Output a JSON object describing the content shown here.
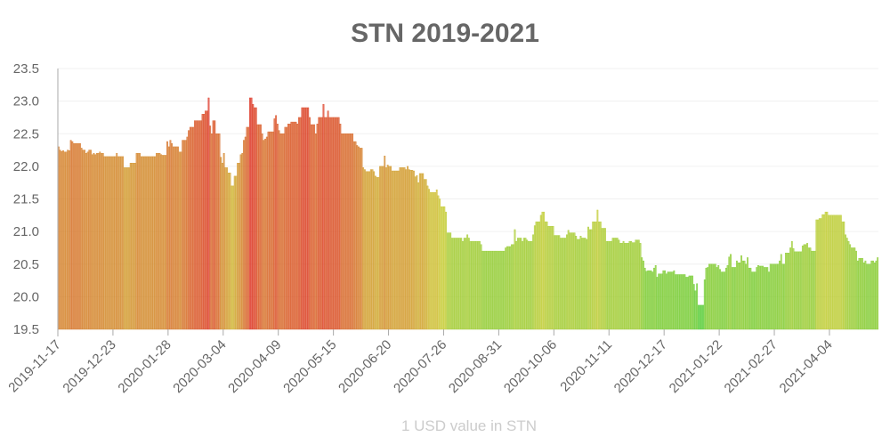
{
  "chart_data": {
    "type": "bar",
    "title": "STN 2019-2021",
    "xlabel": "1 USD value in STN",
    "ylabel": "",
    "ylim": [
      19.5,
      23.5
    ],
    "yticks": [
      "19.5",
      "20.0",
      "20.5",
      "21.0",
      "21.5",
      "22.0",
      "22.5",
      "23.0",
      "23.5"
    ],
    "x_start": "2019-11-17",
    "x_step_days": 1,
    "xtick_every_days": 36,
    "xticks": [
      "2019-11-17",
      "2019-12-23",
      "2020-01-28",
      "2020-03-04",
      "2020-04-09",
      "2020-05-15",
      "2020-06-20",
      "2020-07-26",
      "2020-08-31",
      "2020-10-06",
      "2020-11-11",
      "2020-12-17",
      "2021-01-22",
      "2021-02-27",
      "2021-04-04"
    ],
    "grid": true,
    "legend": "none",
    "color_scale": {
      "low": "#55cc33",
      "mid": "#cccc33",
      "high": "#dd3322"
    },
    "values": [
      22.3,
      22.25,
      22.23,
      22.24,
      22.22,
      22.22,
      22.25,
      22.24,
      22.4,
      22.38,
      22.35,
      22.35,
      22.35,
      22.35,
      22.35,
      22.28,
      22.25,
      22.25,
      22.2,
      22.22,
      22.25,
      22.25,
      22.18,
      22.2,
      22.18,
      22.2,
      22.2,
      22.22,
      22.2,
      22.2,
      22.15,
      22.15,
      22.15,
      22.15,
      22.15,
      22.15,
      22.15,
      22.15,
      22.2,
      22.15,
      22.15,
      22.15,
      22.15,
      21.98,
      21.98,
      21.98,
      21.98,
      22.05,
      22.05,
      22.05,
      22.05,
      22.2,
      22.2,
      22.2,
      22.15,
      22.15,
      22.15,
      22.15,
      22.15,
      22.15,
      22.15,
      22.15,
      22.15,
      22.15,
      22.2,
      22.2,
      22.2,
      22.18,
      22.17,
      22.17,
      22.17,
      22.38,
      22.3,
      22.4,
      22.35,
      22.3,
      22.3,
      22.3,
      22.3,
      22.22,
      22.22,
      22.4,
      22.4,
      22.4,
      22.45,
      22.55,
      22.6,
      22.6,
      22.6,
      22.7,
      22.7,
      22.7,
      22.7,
      22.7,
      22.8,
      22.8,
      22.85,
      22.85,
      23.05,
      22.62,
      22.5,
      22.7,
      22.7,
      22.5,
      22.5,
      22.5,
      22.14,
      22.05,
      22.2,
      21.98,
      21.98,
      21.9,
      21.9,
      21.7,
      21.7,
      21.85,
      21.85,
      22.05,
      22.05,
      22.18,
      22.2,
      22.4,
      22.45,
      22.6,
      22.6,
      23.05,
      23.05,
      22.95,
      22.9,
      22.9,
      22.64,
      22.64,
      22.64,
      22.5,
      22.4,
      22.42,
      22.45,
      22.53,
      22.53,
      22.53,
      22.53,
      22.73,
      22.78,
      22.65,
      22.55,
      22.5,
      22.5,
      22.5,
      22.6,
      22.6,
      22.65,
      22.65,
      22.68,
      22.68,
      22.68,
      22.68,
      22.65,
      22.75,
      22.75,
      22.9,
      22.9,
      22.9,
      22.9,
      22.9,
      22.75,
      22.64,
      22.64,
      22.64,
      22.5,
      22.65,
      22.75,
      22.75,
      22.75,
      22.95,
      22.75,
      22.75,
      22.85,
      22.75,
      22.75,
      22.75,
      22.75,
      22.75,
      22.75,
      22.75,
      22.65,
      22.5,
      22.5,
      22.5,
      22.5,
      22.5,
      22.5,
      22.5,
      22.5,
      22.38,
      22.38,
      22.32,
      22.3,
      22.28,
      22.28,
      21.98,
      21.95,
      21.92,
      21.92,
      21.92,
      21.95,
      21.95,
      21.92,
      21.85,
      21.83,
      21.83,
      22.0,
      22.0,
      22.0,
      22.16,
      21.98,
      22.02,
      22.0,
      22.0,
      21.93,
      21.93,
      21.93,
      21.93,
      21.93,
      21.98,
      21.98,
      21.98,
      21.98,
      21.95,
      22.0,
      21.95,
      21.94,
      21.94,
      21.93,
      21.84,
      21.86,
      21.75,
      21.89,
      21.89,
      21.89,
      21.8,
      21.8,
      21.7,
      21.65,
      21.6,
      21.6,
      21.6,
      21.6,
      21.64,
      21.55,
      21.5,
      21.38,
      21.38,
      21.38,
      21.3,
      20.98,
      20.98,
      20.98,
      20.9,
      20.9,
      20.9,
      20.9,
      20.9,
      20.9,
      20.9,
      20.85,
      20.9,
      20.9,
      20.95,
      20.9,
      20.85,
      20.85,
      20.85,
      20.85,
      20.85,
      20.85,
      20.85,
      20.8,
      20.7,
      20.7,
      20.7,
      20.7,
      20.7,
      20.7,
      20.7,
      20.7,
      20.7,
      20.7,
      20.7,
      20.7,
      20.7,
      20.7,
      20.7,
      20.75,
      20.77,
      20.77,
      20.77,
      20.8,
      20.8,
      21.03,
      20.85,
      20.9,
      20.9,
      20.9,
      20.85,
      20.9,
      20.9,
      20.87,
      20.85,
      20.85,
      20.85,
      20.95,
      21.09,
      21.15,
      21.15,
      21.15,
      21.25,
      21.3,
      21.3,
      21.15,
      21.15,
      21.08,
      21.08,
      21.08,
      21.08,
      20.94,
      20.94,
      20.94,
      20.94,
      20.9,
      20.9,
      20.9,
      20.9,
      20.95,
      21.02,
      20.98,
      20.98,
      20.98,
      20.98,
      20.93,
      20.88,
      20.88,
      20.93,
      20.9,
      20.9,
      20.9,
      20.88,
      21.07,
      21.03,
      21.03,
      21.15,
      21.15,
      21.15,
      21.33,
      21.15,
      21.15,
      21.05,
      21.05,
      21.05,
      20.85,
      20.85,
      20.85,
      20.85,
      20.9,
      20.9,
      20.9,
      20.9,
      20.87,
      20.82,
      20.82,
      20.85,
      20.82,
      20.82,
      20.82,
      20.85,
      20.85,
      20.83,
      20.83,
      20.87,
      20.87,
      20.87,
      20.82,
      20.6,
      20.55,
      20.44,
      20.39,
      20.4,
      20.4,
      20.4,
      20.38,
      20.44,
      20.48,
      20.3,
      20.35,
      20.35,
      20.35,
      20.4,
      20.4,
      20.35,
      20.38,
      20.38,
      20.38,
      20.38,
      20.4,
      20.34,
      20.34,
      20.34,
      20.34,
      20.34,
      20.34,
      20.34,
      20.3,
      20.3,
      20.32,
      20.32,
      20.32,
      20.19,
      20.09,
      20.2,
      19.87,
      19.87,
      19.87,
      19.87,
      20.26,
      20.44,
      20.45,
      20.5,
      20.5,
      20.5,
      20.5,
      20.5,
      20.45,
      20.48,
      20.42,
      20.38,
      20.38,
      20.38,
      20.44,
      20.48,
      20.61,
      20.65,
      20.45,
      20.45,
      20.45,
      20.55,
      20.52,
      20.52,
      20.63,
      20.55,
      20.55,
      20.5,
      20.6,
      20.44,
      20.44,
      20.38,
      20.38,
      20.38,
      20.45,
      20.48,
      20.47,
      20.47,
      20.47,
      20.45,
      20.45,
      20.45,
      20.38,
      20.5,
      20.5,
      20.5,
      20.5,
      20.5,
      20.5,
      20.55,
      20.65,
      20.5,
      20.5,
      20.67,
      20.67,
      20.67,
      20.75,
      20.85,
      20.74,
      20.69,
      20.69,
      20.69,
      20.69,
      20.69,
      20.78,
      20.8,
      20.8,
      20.82,
      20.75,
      20.75,
      20.7,
      20.7,
      20.7,
      21.18,
      21.18,
      21.2,
      21.2,
      21.26,
      21.26,
      21.3,
      21.3,
      21.25,
      21.25,
      21.25,
      21.25,
      21.25,
      21.25,
      21.25,
      21.25,
      21.25,
      21.15,
      21.15,
      20.95,
      20.9,
      20.85,
      20.8,
      20.75,
      20.75,
      20.75,
      20.7,
      20.55,
      20.59,
      20.59,
      20.59,
      20.52,
      20.55,
      20.5,
      20.5,
      20.5,
      20.55,
      20.55,
      20.52,
      20.55,
      20.6
    ]
  }
}
